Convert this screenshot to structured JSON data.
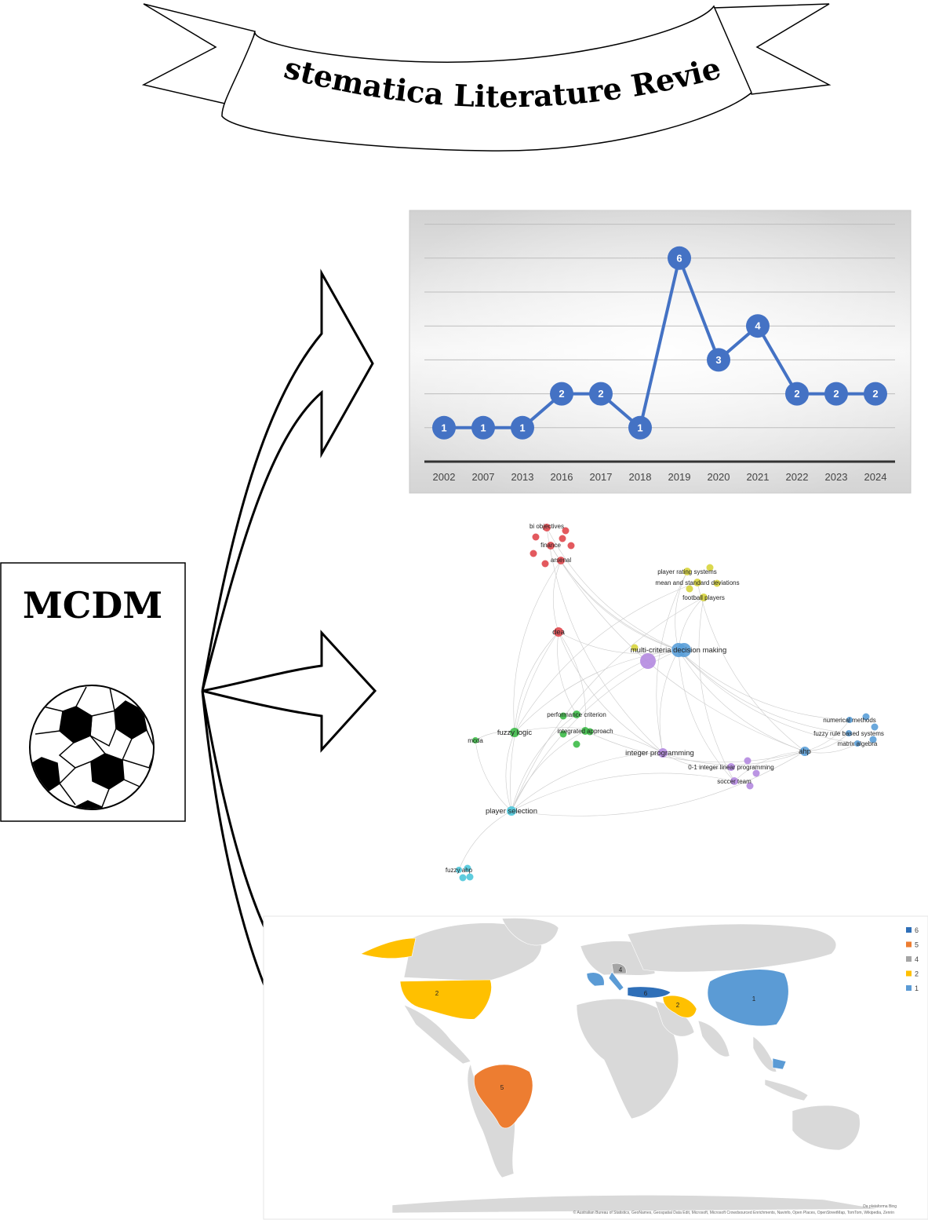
{
  "banner": {
    "title": "Systematica Literature Review"
  },
  "mcdm_card": {
    "title": "MCDM"
  },
  "chart_data": {
    "type": "line",
    "categories": [
      "2002",
      "2007",
      "2013",
      "2016",
      "2017",
      "2018",
      "2019",
      "2020",
      "2021",
      "2022",
      "2023",
      "2024"
    ],
    "series": [
      {
        "values": [
          1,
          1,
          1,
          2,
          2,
          1,
          6,
          3,
          4,
          2,
          2,
          2
        ]
      }
    ],
    "ylim": [
      0,
      7
    ],
    "grid": true,
    "colors": {
      "line": "#4472c4",
      "point": "#4472c4"
    }
  },
  "network": {
    "nodes": [
      {
        "label": "bi objectives",
        "cluster": "red"
      },
      {
        "label": "finance",
        "cluster": "red"
      },
      {
        "label": "arsenal",
        "cluster": "red"
      },
      {
        "label": "dea",
        "cluster": "red"
      },
      {
        "label": "player rating systems",
        "cluster": "yellow"
      },
      {
        "label": "mean and standard deviations",
        "cluster": "yellow"
      },
      {
        "label": "football players",
        "cluster": "yellow"
      },
      {
        "label": "multi-criteria decision making",
        "cluster": "blue"
      },
      {
        "label": "performance criterion",
        "cluster": "green"
      },
      {
        "label": "fuzzy logic",
        "cluster": "green"
      },
      {
        "label": "integrated approach",
        "cluster": "green"
      },
      {
        "label": "mcda",
        "cluster": "green"
      },
      {
        "label": "integer programming",
        "cluster": "purple"
      },
      {
        "label": "0-1 integer linear programming",
        "cluster": "purple"
      },
      {
        "label": "soccer team",
        "cluster": "purple"
      },
      {
        "label": "numerical methods",
        "cluster": "blue"
      },
      {
        "label": "fuzzy rule based systems",
        "cluster": "blue"
      },
      {
        "label": "matrix algebra",
        "cluster": "blue"
      },
      {
        "label": "ahp",
        "cluster": "blue"
      },
      {
        "label": "player selection",
        "cluster": "cyan"
      },
      {
        "label": "fuzzy ahp",
        "cluster": "cyan"
      }
    ],
    "colors": {
      "red": "#e0474c",
      "yellow": "#d7d43c",
      "green": "#3dbb48",
      "purple": "#b48ae0",
      "blue": "#5a9fd8",
      "cyan": "#4cc7da"
    }
  },
  "map": {
    "legend": [
      {
        "label": "6",
        "color": "#2f6fb8"
      },
      {
        "label": "5",
        "color": "#ed7d31"
      },
      {
        "label": "4",
        "color": "#a5a5a5"
      },
      {
        "label": "2",
        "color": "#ffc000"
      },
      {
        "label": "1",
        "color": "#5b9bd5"
      }
    ],
    "region_labels": {
      "usa": "2",
      "brazil": "5",
      "turkey": "6",
      "iran": "2",
      "china": "1",
      "russia_area": "4"
    },
    "attribution_line1": "Da plataforma Bing",
    "attribution_line2": "© Australian Bureau of Statistics, GeoNames, Geospatial Data Edit, Microsoft, Microsoft Crowdsourced Enrichments, Navinfo, Open Places, OpenStreetMap, TomTom, Wikipedia, Zenrin"
  }
}
